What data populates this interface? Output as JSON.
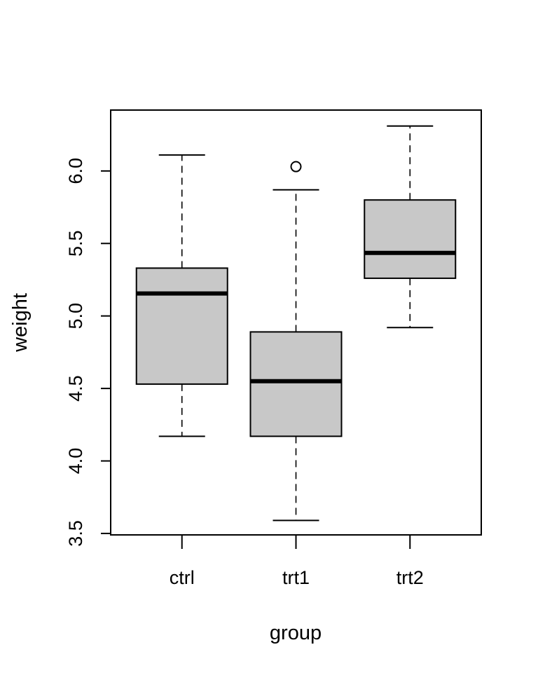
{
  "chart_data": {
    "type": "boxplot",
    "xlabel": "group",
    "ylabel": "weight",
    "ylim": [
      3.49,
      6.42
    ],
    "y_ticks": [
      "3.5",
      "4.0",
      "4.5",
      "5.0",
      "5.5",
      "6.0"
    ],
    "grid": false,
    "colors": {
      "box_fill": "#c8c8c8",
      "stroke": "#000000",
      "background": "#ffffff"
    },
    "categories": [
      "ctrl",
      "trt1",
      "trt2"
    ],
    "series": [
      {
        "category": "ctrl",
        "min": 4.17,
        "q1": 4.53,
        "median": 5.155,
        "q3": 5.33,
        "max": 6.11,
        "outliers": []
      },
      {
        "category": "trt1",
        "min": 3.59,
        "q1": 4.17,
        "median": 4.55,
        "q3": 4.89,
        "max": 5.87,
        "outliers": [
          6.03
        ]
      },
      {
        "category": "trt2",
        "min": 4.92,
        "q1": 5.26,
        "median": 5.435,
        "q3": 5.8,
        "max": 6.31,
        "outliers": []
      }
    ]
  }
}
